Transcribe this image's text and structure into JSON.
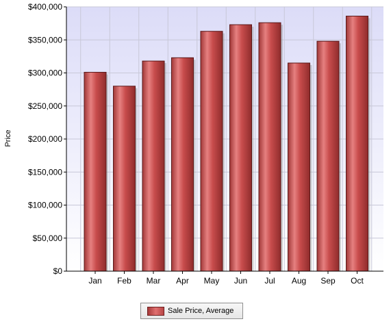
{
  "chart_data": {
    "type": "bar",
    "categories": [
      "Jan",
      "Feb",
      "Mar",
      "Apr",
      "May",
      "Jun",
      "Jul",
      "Aug",
      "Sep",
      "Oct"
    ],
    "series": [
      {
        "name": "Sale Price, Average",
        "values": [
          301000,
          280000,
          318000,
          323000,
          363000,
          373000,
          376000,
          315000,
          348000,
          386000
        ]
      }
    ],
    "title": "",
    "xlabel": "",
    "ylabel": "Price",
    "ylim": [
      0,
      400000
    ],
    "yticks": [
      0,
      50000,
      100000,
      150000,
      200000,
      250000,
      300000,
      350000,
      400000
    ],
    "ytick_labels": [
      "$0",
      "$50,000",
      "$100,000",
      "$150,000",
      "$200,000",
      "$250,000",
      "$300,000",
      "$350,000",
      "$400,000"
    ],
    "grid": true,
    "legend_position": "bottom-center",
    "colors": {
      "bar": "#c84c4c",
      "bar_highlight": "#e68080",
      "bar_outline": "#5a1818",
      "plot_background_top": "#dcdcf8",
      "plot_background_bottom": "#ffffff",
      "grid": "#c8c8d8"
    }
  }
}
